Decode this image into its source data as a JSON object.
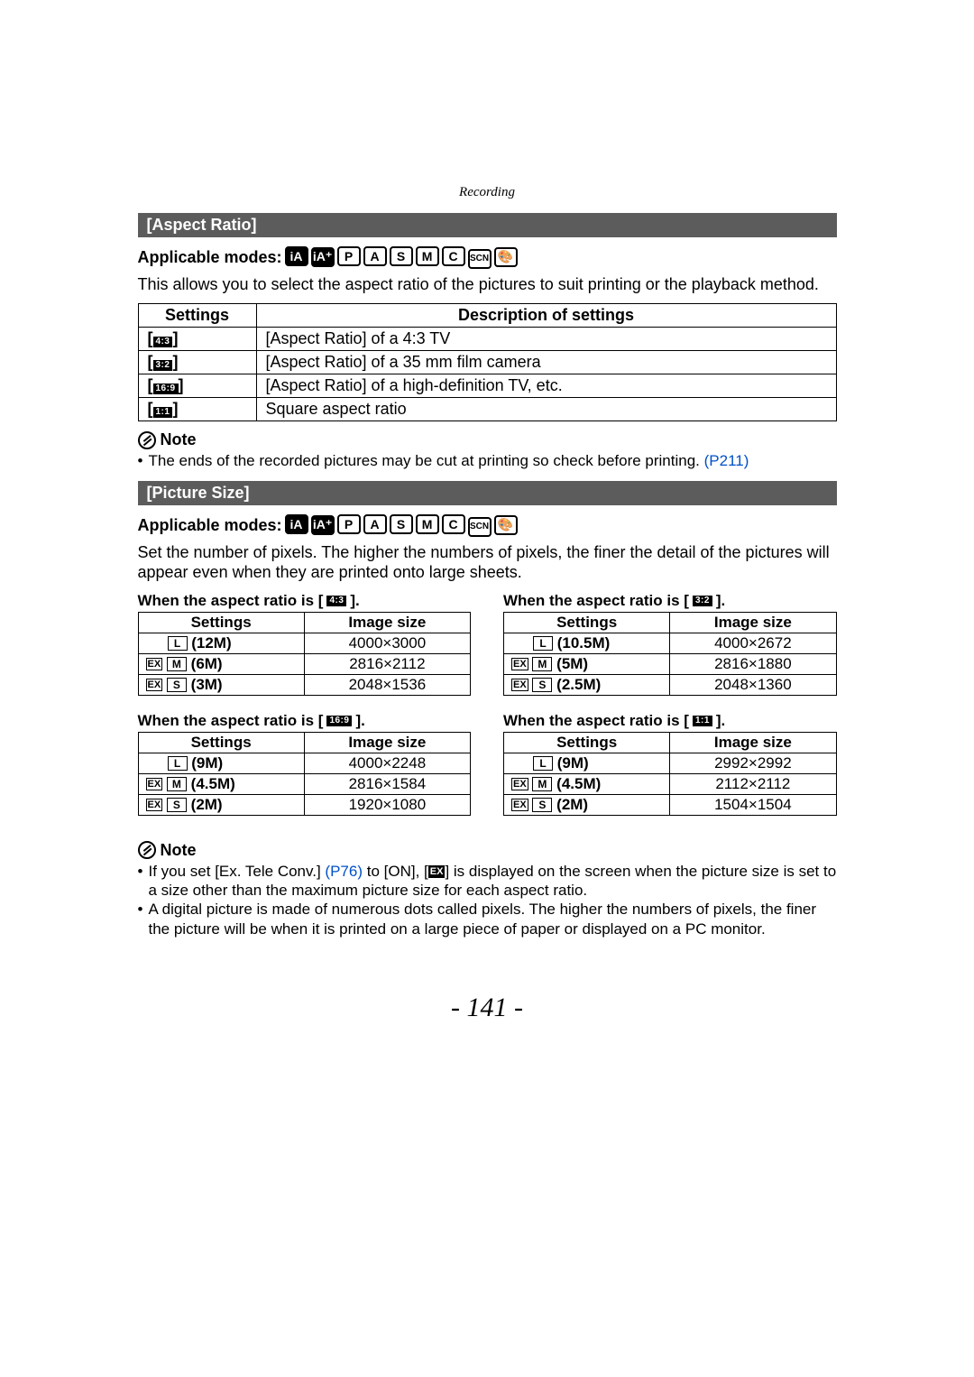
{
  "header": "Recording",
  "section1": {
    "title": "[Aspect Ratio]",
    "applicable_label": "Applicable modes:",
    "modes": [
      "iA",
      "iA+",
      "P",
      "A",
      "S",
      "M",
      "C",
      "SCN",
      "🎨"
    ],
    "body": "This allows you to select the aspect ratio of the pictures to suit printing or the playback method.",
    "table": {
      "headers": [
        "Settings",
        "Description of settings"
      ],
      "rows": [
        {
          "badge": "4:3",
          "desc": "[Aspect Ratio] of a 4:3 TV"
        },
        {
          "badge": "3:2",
          "desc": "[Aspect Ratio] of a 35 mm film camera"
        },
        {
          "badge": "16:9",
          "desc": "[Aspect Ratio] of a high-definition TV, etc."
        },
        {
          "badge": "1:1",
          "desc": "Square aspect ratio"
        }
      ]
    },
    "note_label": "Note",
    "note_text": "The ends of the recorded pictures may be cut at printing so check before printing. ",
    "note_link": "(P211)"
  },
  "section2": {
    "title": "[Picture Size]",
    "applicable_label": "Applicable modes:",
    "modes": [
      "iA",
      "iA+",
      "P",
      "A",
      "S",
      "M",
      "C",
      "SCN",
      "🎨"
    ],
    "body": "Set the number of pixels. The higher the numbers of pixels, the finer the detail of the pictures will appear even when they are printed onto large sheets.",
    "caption_prefix": "When the aspect ratio is [",
    "caption_suffix": "].",
    "headers": [
      "Settings",
      "Image size"
    ],
    "groups": [
      {
        "badge": "4:3",
        "rows": [
          {
            "ex": false,
            "s": "L",
            "mp": "(12M)",
            "dim": "4000×3000"
          },
          {
            "ex": true,
            "s": "M",
            "mp": "(6M)",
            "dim": "2816×2112"
          },
          {
            "ex": true,
            "s": "S",
            "mp": "(3M)",
            "dim": "2048×1536"
          }
        ]
      },
      {
        "badge": "3:2",
        "rows": [
          {
            "ex": false,
            "s": "L",
            "mp": "(10.5M)",
            "dim": "4000×2672"
          },
          {
            "ex": true,
            "s": "M",
            "mp": "(5M)",
            "dim": "2816×1880"
          },
          {
            "ex": true,
            "s": "S",
            "mp": "(2.5M)",
            "dim": "2048×1360"
          }
        ]
      },
      {
        "badge": "16:9",
        "rows": [
          {
            "ex": false,
            "s": "L",
            "mp": "(9M)",
            "dim": "4000×2248"
          },
          {
            "ex": true,
            "s": "M",
            "mp": "(4.5M)",
            "dim": "2816×1584"
          },
          {
            "ex": true,
            "s": "S",
            "mp": "(2M)",
            "dim": "1920×1080"
          }
        ]
      },
      {
        "badge": "1:1",
        "rows": [
          {
            "ex": false,
            "s": "L",
            "mp": "(9M)",
            "dim": "2992×2992"
          },
          {
            "ex": true,
            "s": "M",
            "mp": "(4.5M)",
            "dim": "2112×2112"
          },
          {
            "ex": true,
            "s": "S",
            "mp": "(2M)",
            "dim": "1504×1504"
          }
        ]
      }
    ],
    "note_label": "Note",
    "notes": {
      "n1a": "If you set [Ex. Tele Conv.] ",
      "n1_link": "(P76)",
      "n1b": " to [ON], [",
      "n1c": "] is displayed on the screen when the picture size is set to a size other than the maximum picture size for each aspect ratio.",
      "n2": "A digital picture is made of numerous dots called pixels. The higher the numbers of pixels, the finer the picture will be when it is printed on a large piece of paper or displayed on a PC monitor."
    },
    "ex_label": "EX"
  },
  "page_number": "- 141 -"
}
